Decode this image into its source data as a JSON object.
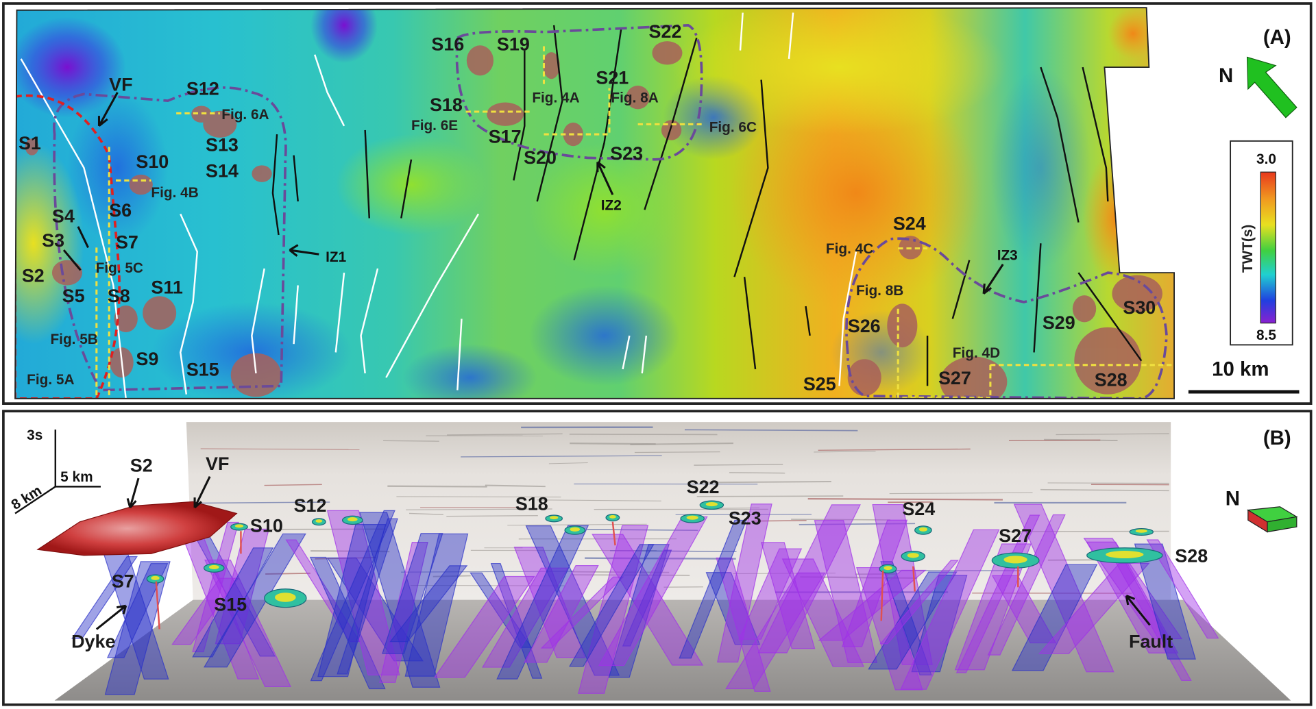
{
  "panel_a": {
    "panel_label": "(A)",
    "north_label": "N",
    "colorbar": {
      "title": "TWT(s)",
      "top_value": "3.0",
      "bottom_value": "8.5",
      "colors": [
        "#e8381c",
        "#f09a20",
        "#e8e020",
        "#40d040",
        "#20d0d0",
        "#2040e0",
        "#8a20d0"
      ]
    },
    "scale_bar": "10 km",
    "zones": [
      "VF",
      "IZ1",
      "IZ2",
      "IZ3"
    ],
    "sills": [
      "S1",
      "S2",
      "S3",
      "S4",
      "S5",
      "S6",
      "S7",
      "S8",
      "S9",
      "S10",
      "S11",
      "S12",
      "S13",
      "S14",
      "S15",
      "S16",
      "S17",
      "S18",
      "S19",
      "S20",
      "S21",
      "S22",
      "S23",
      "S24",
      "S25",
      "S26",
      "S27",
      "S28",
      "S29",
      "S30"
    ],
    "figure_refs": [
      "Fig. 5A",
      "Fig. 5B",
      "Fig. 5C",
      "Fig. 6A",
      "Fig. 4B",
      "Fig. 6E",
      "Fig. 4A",
      "Fig. 8A",
      "Fig. 6C",
      "Fig. 4C",
      "Fig. 8B",
      "Fig. 4D"
    ]
  },
  "panel_b": {
    "panel_label": "(B)",
    "north_label": "N",
    "axes": {
      "vertical": "3s",
      "horizontal": "5 km",
      "depth": "8 km"
    },
    "labels": {
      "s2": "S2",
      "vf": "VF",
      "s10": "S10",
      "s12": "S12",
      "s18": "S18",
      "s22": "S22",
      "s23": "S23",
      "s24": "S24",
      "s27": "S27",
      "s28": "S28",
      "s7": "S7",
      "s15": "S15",
      "dyke": "Dyke",
      "fault": "Fault"
    },
    "colors": {
      "fault_blue": "#2a30c8",
      "fault_purple": "#a030e8"
    }
  }
}
